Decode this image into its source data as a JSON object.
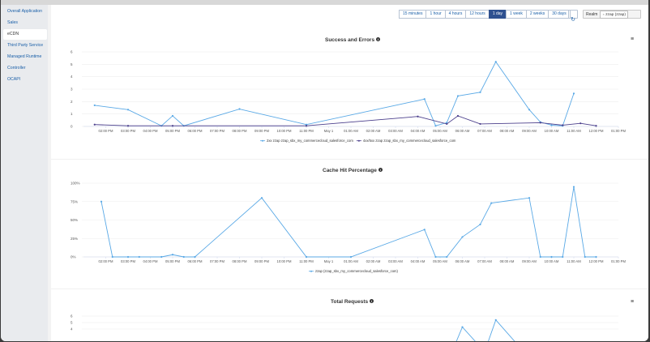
{
  "sidebar": {
    "items": [
      {
        "label": "Overall Application",
        "active": false
      },
      {
        "label": "Sales",
        "active": false
      },
      {
        "label": "eCDN",
        "active": true
      },
      {
        "label": "Third Party Service",
        "active": false
      },
      {
        "label": "Managed Runtime",
        "active": false
      },
      {
        "label": "Controller",
        "active": false
      },
      {
        "label": "OCAPI",
        "active": false
      }
    ]
  },
  "toolbar": {
    "ranges": [
      "15 minutes",
      "1 hour",
      "4 hours",
      "12 hours",
      "1 day",
      "1 week",
      "2 weeks",
      "30 days"
    ],
    "selected": "1 day",
    "realm_label": "Realm",
    "realm_value": "zzap (zzap)"
  },
  "x_labels": [
    "02:00 PM",
    "03:00 PM",
    "04:00 PM",
    "05:00 PM",
    "06:00 PM",
    "07:00 PM",
    "08:00 PM",
    "09:00 PM",
    "10:00 PM",
    "11:00 PM",
    "May 1",
    "01:00 AM",
    "02:00 AM",
    "03:00 AM",
    "04:00 AM",
    "05:00 AM",
    "06:00 AM",
    "07:00 AM",
    "08:00 AM",
    "09:00 AM",
    "10:00 AM",
    "11:00 AM",
    "12:00 PM",
    "01:00 PM"
  ],
  "chart_data": [
    {
      "type": "line",
      "title": "Success and Errors",
      "ylim": [
        0,
        6
      ],
      "y_ticks": [
        0,
        1,
        2,
        3,
        4,
        5,
        6
      ],
      "series": [
        {
          "name": "2xx zzap zzap_sbx_my_commercecloud_salesforce_com",
          "color": "#5aa9e6",
          "points": [
            [
              13.5,
              1.7
            ],
            [
              15,
              1.35
            ],
            [
              16.5,
              0.05
            ],
            [
              17,
              0.85
            ],
            [
              17.5,
              0.05
            ],
            [
              20,
              1.4
            ],
            [
              23,
              0.15
            ],
            [
              28.3,
              2.2
            ],
            [
              28.8,
              0.05
            ],
            [
              29.3,
              0.3
            ],
            [
              29.8,
              2.45
            ],
            [
              30.8,
              2.75
            ],
            [
              31.5,
              5.2
            ],
            [
              33,
              1.35
            ],
            [
              33.5,
              0.35
            ],
            [
              34,
              0.1
            ],
            [
              34.5,
              0.05
            ],
            [
              35,
              2.65
            ]
          ]
        },
        {
          "name": "4xx/5xx zzap zzap_sbx_my_commercecloud_salesforce_com",
          "color": "#4b3f8c",
          "points": [
            [
              13.5,
              0.15
            ],
            [
              15,
              0.05
            ],
            [
              17,
              0.05
            ],
            [
              23,
              0.05
            ],
            [
              28,
              0.8
            ],
            [
              29.3,
              0.2
            ],
            [
              29.8,
              0.85
            ],
            [
              30.8,
              0.2
            ],
            [
              33.5,
              0.3
            ],
            [
              34.5,
              0.1
            ],
            [
              35.3,
              0.25
            ],
            [
              36,
              0.05
            ]
          ]
        }
      ]
    },
    {
      "type": "line",
      "title": "Cache Hit Percentage",
      "ylim": [
        0,
        100
      ],
      "y_ticks": [
        "0%",
        "25%",
        "50%",
        "75%",
        "100%"
      ],
      "series": [
        {
          "name": "zzap (zzap_sbx_my_commercecloud_salesforce_com)",
          "color": "#5aa9e6",
          "points": [
            [
              13.8,
              75
            ],
            [
              14.3,
              0
            ],
            [
              15,
              0
            ],
            [
              15.5,
              0
            ],
            [
              16.5,
              0
            ],
            [
              17,
              3
            ],
            [
              17.5,
              0
            ],
            [
              18,
              0
            ],
            [
              21,
              80
            ],
            [
              23,
              0
            ],
            [
              25,
              0
            ],
            [
              28.3,
              37
            ],
            [
              28.8,
              0
            ],
            [
              29.3,
              0
            ],
            [
              30,
              27
            ],
            [
              30.8,
              44
            ],
            [
              31.3,
              73
            ],
            [
              33,
              80
            ],
            [
              33.5,
              0
            ],
            [
              34,
              0
            ],
            [
              34.5,
              0
            ],
            [
              35,
              95
            ],
            [
              35.5,
              0
            ],
            [
              36,
              0
            ]
          ]
        }
      ]
    },
    {
      "type": "line",
      "title": "Total Requests",
      "ylim": [
        0,
        6
      ],
      "y_ticks": [
        4,
        5,
        6
      ],
      "series": [
        {
          "name": "",
          "color": "#5aa9e6",
          "points": [
            [
              28.2,
              0.2
            ],
            [
              28.5,
              1.5
            ],
            [
              29.5,
              0.2
            ],
            [
              30,
              4.3
            ],
            [
              31,
              0.5
            ],
            [
              31.5,
              5.4
            ],
            [
              32.5,
              1.5
            ]
          ]
        }
      ]
    }
  ]
}
